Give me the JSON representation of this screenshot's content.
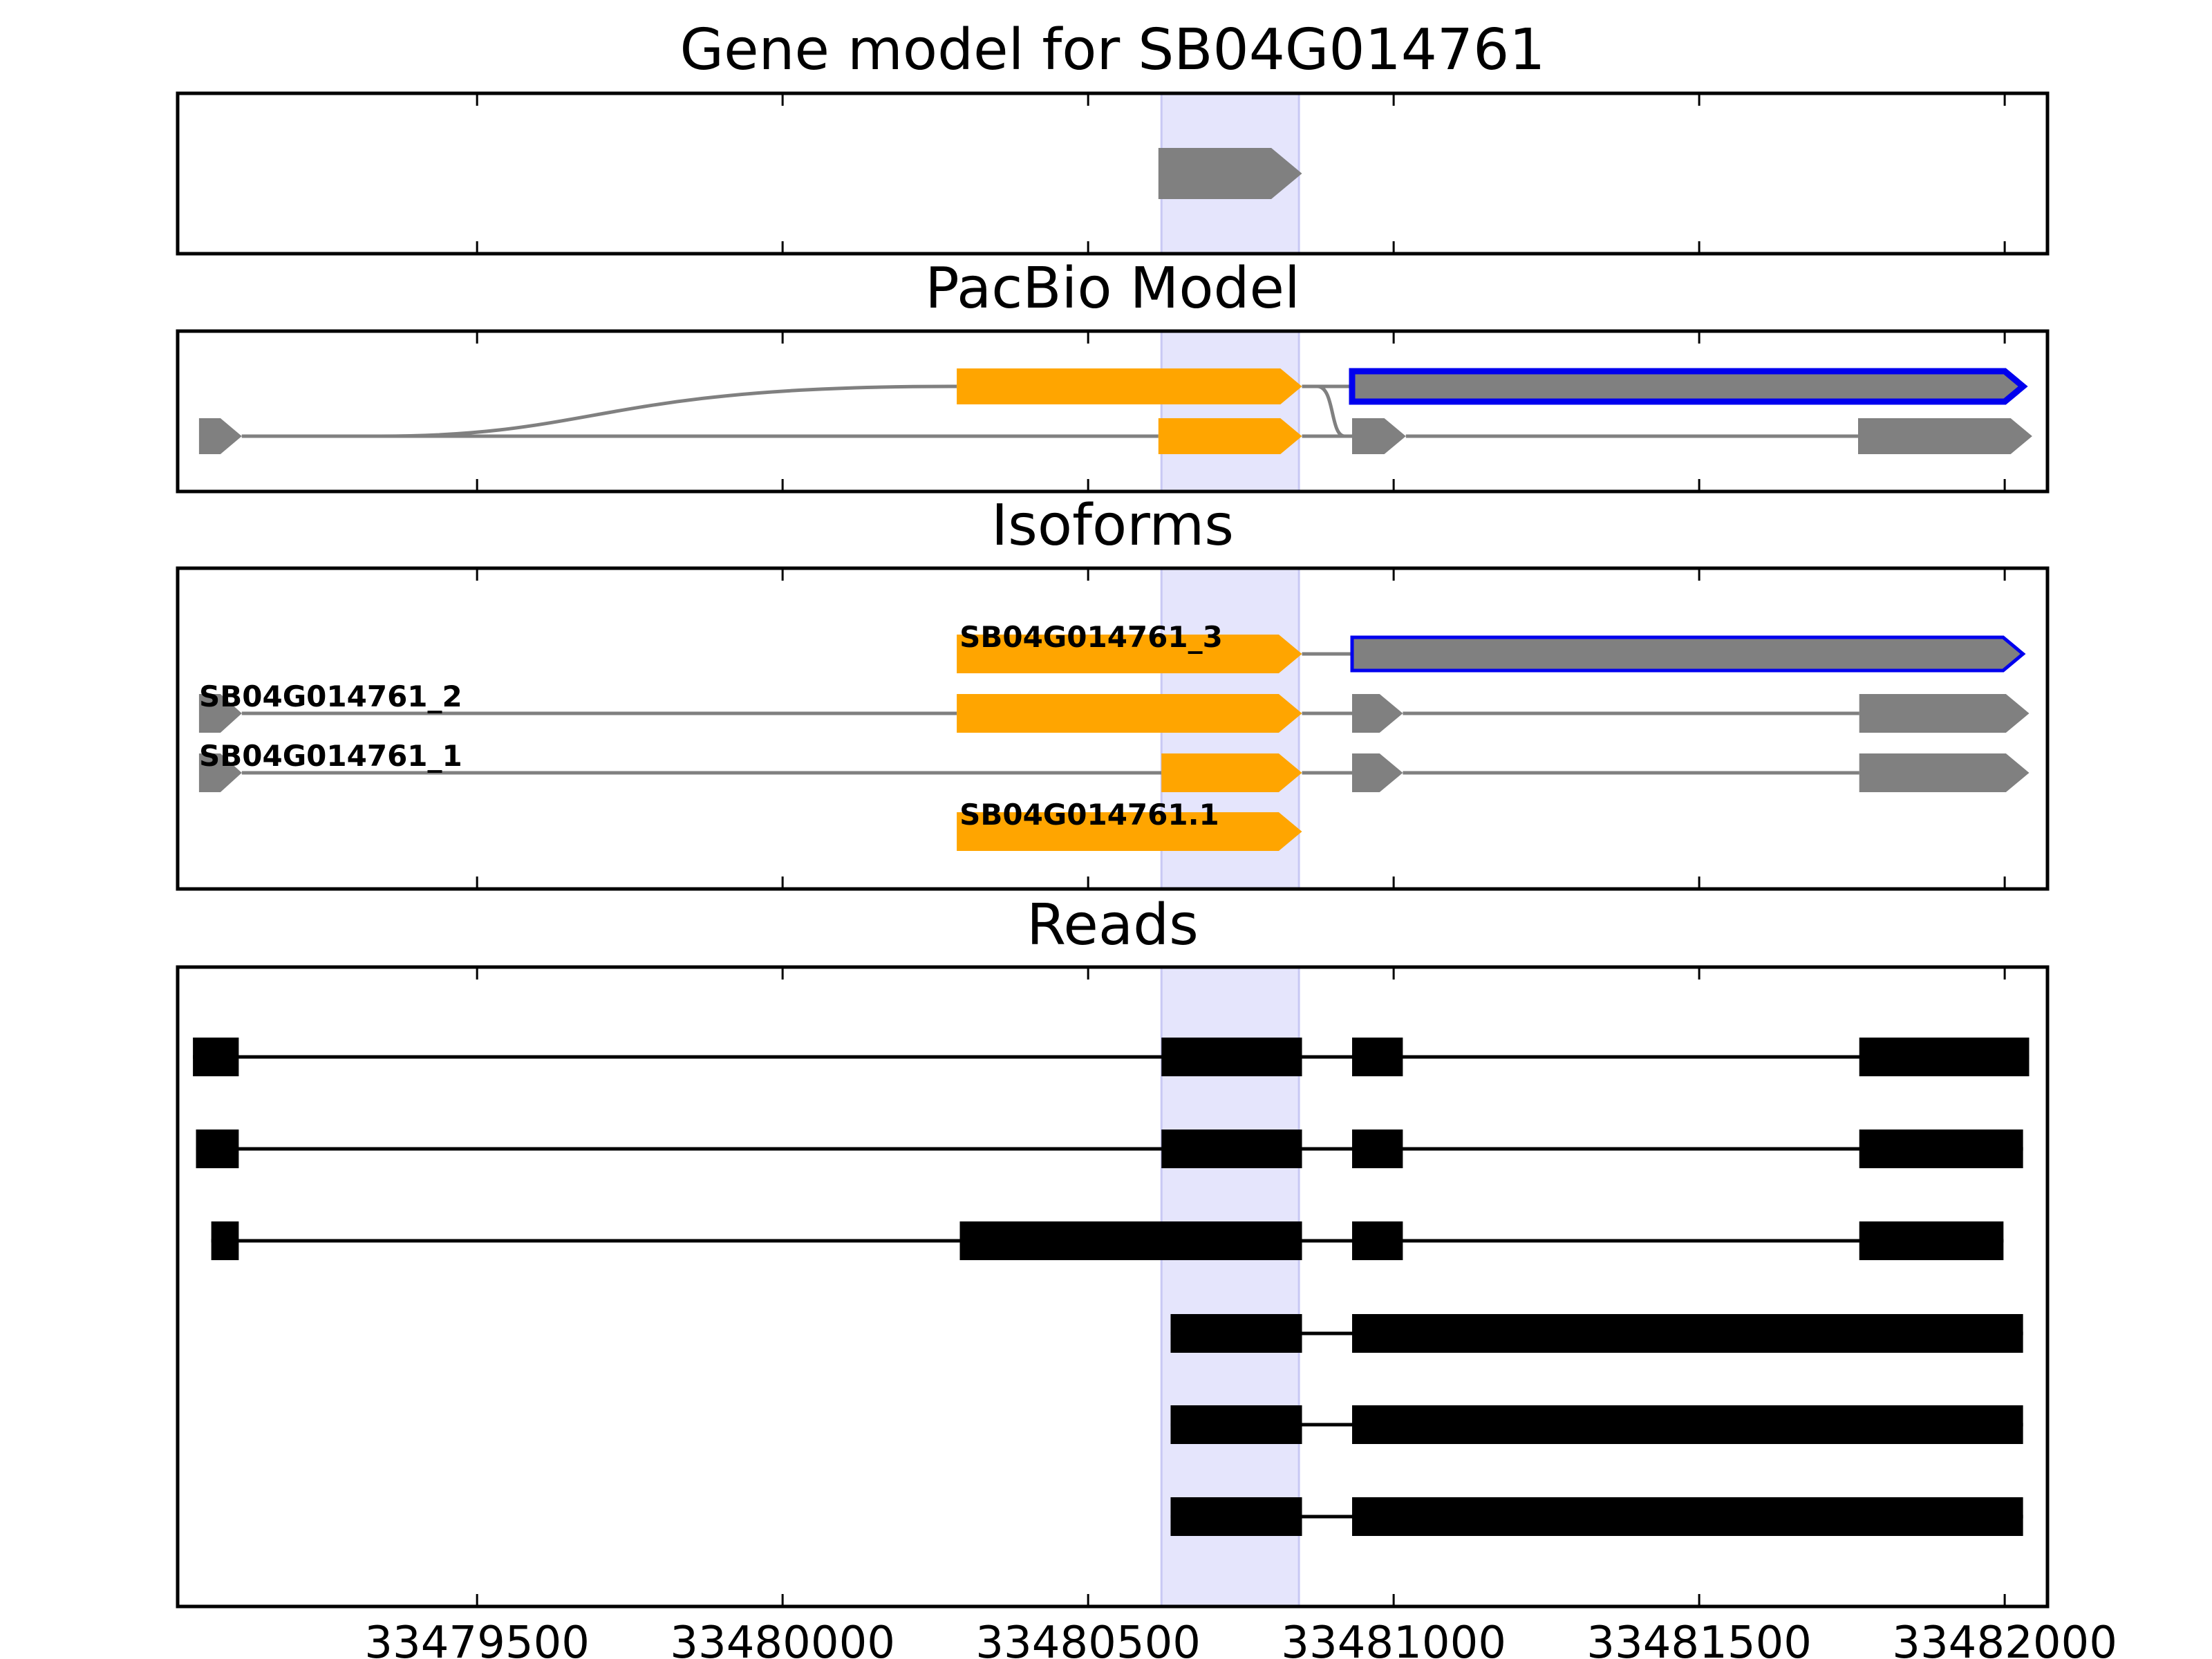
{
  "colors": {
    "highlight": "#e5e5fc",
    "highlight_edge": "#c8c8f4",
    "exon_gray": "#808080",
    "exon_orange": "#ffa500",
    "selected_outline": "#0000ee",
    "intron_gray": "#808080",
    "read_black": "#000000"
  },
  "chart_data": {
    "type": "gene-track",
    "x_range": [
      33479010,
      33482070
    ],
    "x_ticks": [
      33479500,
      33480000,
      33480500,
      33481000,
      33481500,
      33482000
    ],
    "x_tick_labels": [
      "33479500",
      "33480000",
      "33480500",
      "33481000",
      "33481500",
      "33482000"
    ],
    "highlight_region": [
      33480620,
      33480845
    ],
    "panels": {
      "gene_model": {
        "title": "Gene model for SB04G014761",
        "features": [
          {
            "start": 33480615,
            "end": 33480850,
            "color": "gray",
            "strand": "+"
          }
        ]
      },
      "pacbio_model": {
        "title": "PacBio Model",
        "transcripts": [
          {
            "exons": [
              [
                33480285,
                33480850,
                "orange"
              ],
              [
                33480932,
                33482030,
                "gray-selected"
              ]
            ]
          },
          {
            "exons": [
              [
                33479045,
                33479115,
                "gray"
              ],
              [
                33480615,
                33480850,
                "orange"
              ],
              [
                33480932,
                33481020,
                "gray"
              ],
              [
                33481760,
                33482045,
                "gray"
              ]
            ]
          }
        ],
        "connectors": [
          {
            "from": 33479115,
            "to": 33480285,
            "from_row": 1,
            "to_row": 0,
            "shape": "curve"
          },
          {
            "from": 33480850,
            "to": 33480932,
            "from_row": 0,
            "to_row": 1,
            "shape": "curve"
          }
        ]
      },
      "isoforms": {
        "title": "Isoforms",
        "transcripts": [
          {
            "label": "SB04G014761_3",
            "exons": [
              [
                33480285,
                33480850,
                "orange"
              ],
              [
                33480932,
                33482030,
                "gray-selected"
              ]
            ]
          },
          {
            "label": "SB04G014761_2",
            "exons": [
              [
                33479045,
                33479115,
                "gray"
              ],
              [
                33480285,
                33480850,
                "orange"
              ],
              [
                33480932,
                33481015,
                "gray"
              ],
              [
                33481762,
                33482040,
                "gray"
              ]
            ]
          },
          {
            "label": "SB04G014761_1",
            "exons": [
              [
                33479045,
                33479115,
                "gray"
              ],
              [
                33480620,
                33480850,
                "orange"
              ],
              [
                33480932,
                33481015,
                "gray"
              ],
              [
                33481762,
                33482040,
                "gray"
              ]
            ]
          },
          {
            "label": "SB04G014761.1",
            "exons": [
              [
                33480285,
                33480850,
                "orange"
              ]
            ]
          }
        ]
      },
      "reads": {
        "title": "Reads",
        "reads": [
          {
            "exons": [
              [
                33479035,
                33479110
              ],
              [
                33480620,
                33480850
              ],
              [
                33480932,
                33481015
              ],
              [
                33481762,
                33482040
              ]
            ]
          },
          {
            "exons": [
              [
                33479040,
                33479110
              ],
              [
                33480620,
                33480850
              ],
              [
                33480932,
                33481015
              ],
              [
                33481762,
                33482030
              ]
            ]
          },
          {
            "exons": [
              [
                33479065,
                33479110
              ],
              [
                33480290,
                33480850
              ],
              [
                33480932,
                33481015
              ],
              [
                33481762,
                33481998
              ]
            ]
          },
          {
            "exons": [
              [
                33480635,
                33480850
              ],
              [
                33480932,
                33482030
              ]
            ]
          },
          {
            "exons": [
              [
                33480635,
                33480850
              ],
              [
                33480932,
                33482030
              ]
            ]
          },
          {
            "exons": [
              [
                33480635,
                33480850
              ],
              [
                33480932,
                33482030
              ]
            ]
          }
        ]
      }
    }
  }
}
